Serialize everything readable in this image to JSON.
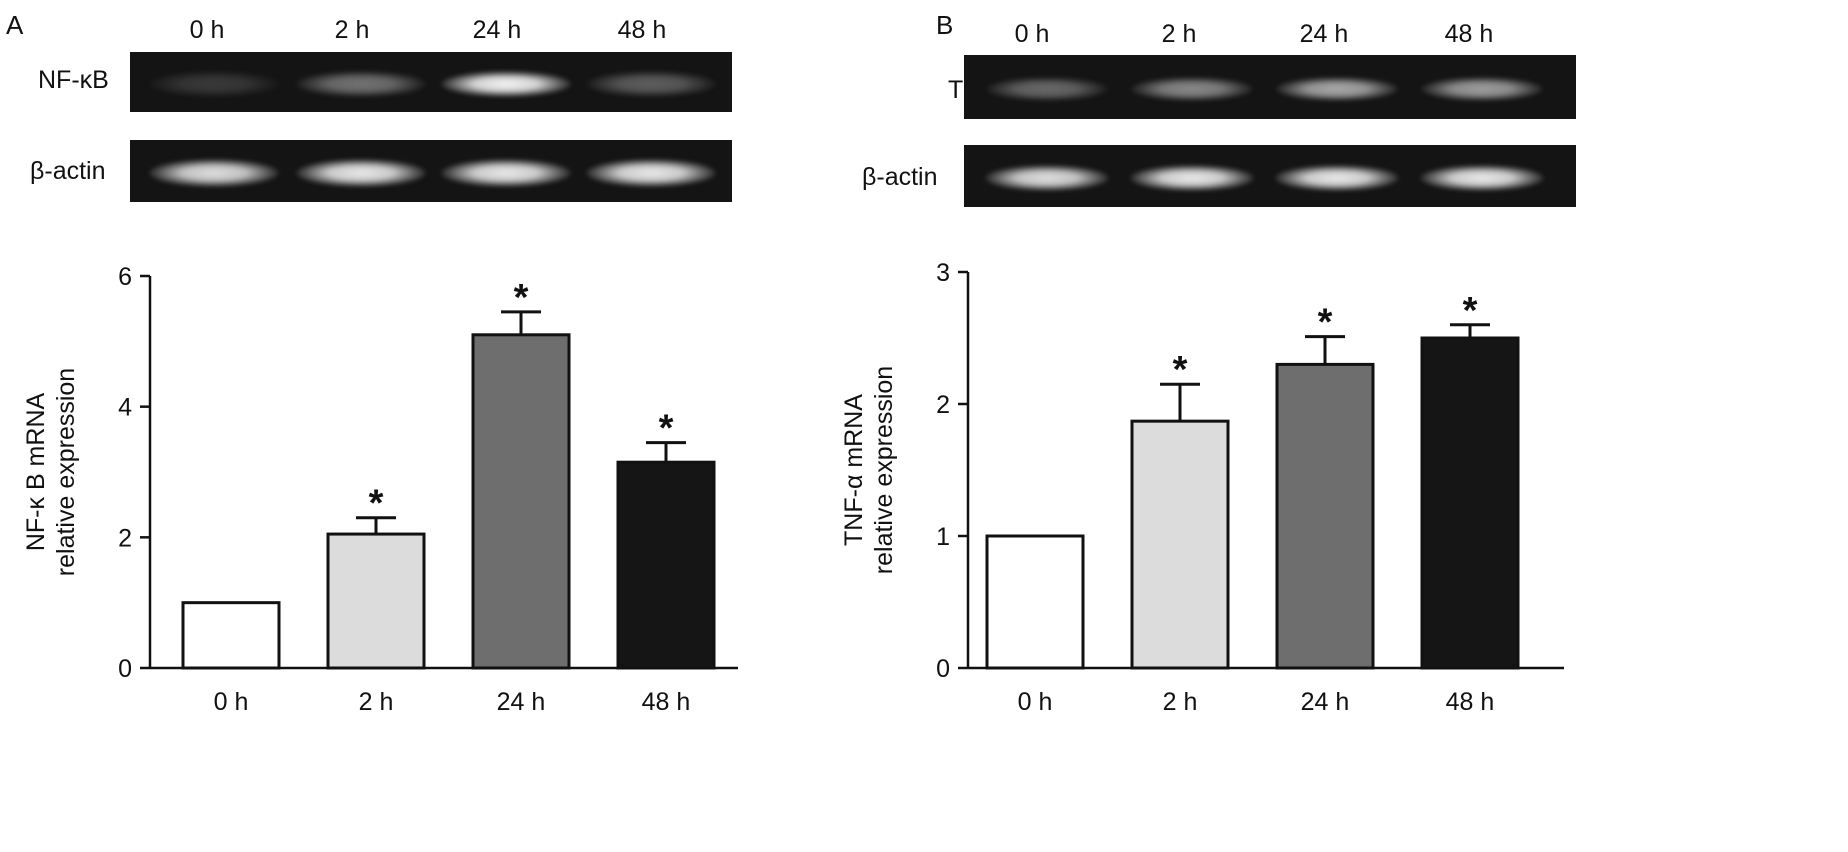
{
  "panels": [
    {
      "letter": "A",
      "lanes": [
        "0 h",
        "2 h",
        "24 h",
        "48 h"
      ],
      "gels": [
        {
          "label": "NF-κB",
          "band_intensity": [
            0.08,
            0.35,
            0.95,
            0.25
          ]
        },
        {
          "label": "β-actin",
          "band_intensity": [
            0.85,
            0.9,
            0.9,
            0.9
          ]
        }
      ]
    },
    {
      "letter": "B",
      "lanes": [
        "0 h",
        "2 h",
        "24 h",
        "48 h"
      ],
      "gels": [
        {
          "label": "TNF-α",
          "band_intensity": [
            0.3,
            0.45,
            0.6,
            0.55
          ]
        },
        {
          "label": "β-actin",
          "band_intensity": [
            0.85,
            0.9,
            0.9,
            0.9
          ]
        }
      ]
    }
  ],
  "chart_data": [
    {
      "type": "bar",
      "panel": "A",
      "categories": [
        "0 h",
        "2 h",
        "24 h",
        "48 h"
      ],
      "values": [
        1.0,
        2.05,
        5.1,
        3.15
      ],
      "errors": [
        0,
        0.25,
        0.35,
        0.3
      ],
      "significance": [
        "",
        "*",
        "*",
        "*"
      ],
      "bar_colors": [
        "#ffffff",
        "#dcdcdc",
        "#6e6e6e",
        "#151515"
      ],
      "ylabel_line1": "NF-κ B mRNA",
      "ylabel_line2": "relative expression",
      "ylim": [
        0,
        6
      ],
      "yticks": [
        "0",
        "2",
        "4",
        "6"
      ],
      "ytick_values": [
        0,
        2,
        4,
        6
      ],
      "grid": false
    },
    {
      "type": "bar",
      "panel": "B",
      "categories": [
        "0 h",
        "2 h",
        "24 h",
        "48 h"
      ],
      "values": [
        1.0,
        1.87,
        2.3,
        2.5
      ],
      "errors": [
        0,
        0.28,
        0.21,
        0.1
      ],
      "significance": [
        "",
        "*",
        "*",
        "*"
      ],
      "bar_colors": [
        "#ffffff",
        "#dcdcdc",
        "#6e6e6e",
        "#151515"
      ],
      "ylabel_line1": "TNF-α mRNA",
      "ylabel_line2": "relative expression",
      "ylim": [
        0,
        3
      ],
      "yticks": [
        "0",
        "1",
        "2",
        "3"
      ],
      "ytick_values": [
        0,
        1,
        2,
        3
      ],
      "grid": false
    }
  ]
}
